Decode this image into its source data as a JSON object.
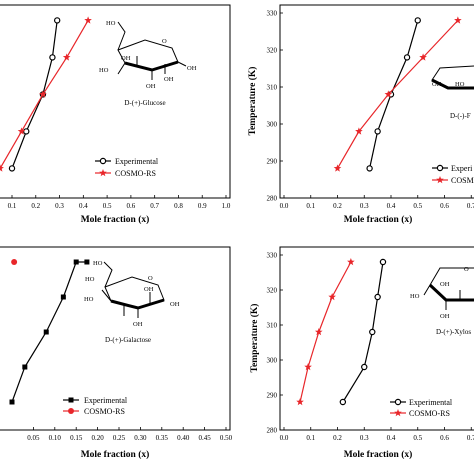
{
  "chart_data": [
    {
      "panel": "top-left",
      "type": "line",
      "xlabel": "Mole fraction (x)",
      "ylabel": "",
      "xlim": [
        0.1,
        1.0
      ],
      "ylim": [
        280,
        330
      ],
      "xticks": [
        "0.1",
        "0.2",
        "0.3",
        "0.4",
        "0.5",
        "0.6",
        "0.7",
        "0.8",
        "0.9",
        "1.0"
      ],
      "yticks": [],
      "legend": "bottom-center",
      "grid": false,
      "molecule_label": "D-(+)-Glucose",
      "series": [
        {
          "name": "Experimental",
          "marker": "circle",
          "color": "#000000",
          "x": [
            0.1,
            0.16,
            0.23,
            0.27,
            0.29
          ],
          "y": [
            288,
            298,
            308,
            318,
            328
          ]
        },
        {
          "name": "COSMO-RS",
          "marker": "star",
          "color": "#e8262a",
          "x": [
            0.05,
            0.14,
            0.23,
            0.33,
            0.42
          ],
          "y": [
            288,
            298,
            308,
            318,
            328
          ]
        }
      ]
    },
    {
      "panel": "top-right",
      "type": "line",
      "xlabel": "Mole fraction (x)",
      "ylabel": "Temperature (K)",
      "xlim": [
        0.0,
        0.8
      ],
      "ylim": [
        280,
        330
      ],
      "xticks": [
        "0.0",
        "0.1",
        "0.2",
        "0.3",
        "0.4",
        "0.5",
        "0.6",
        "0.7"
      ],
      "yticks": [
        "280",
        "290",
        "300",
        "310",
        "320",
        "330"
      ],
      "legend": "bottom-right",
      "grid": false,
      "molecule_label": "D-(-)-F",
      "series": [
        {
          "name": "Experimental",
          "marker": "circle",
          "color": "#000000",
          "x": [
            0.32,
            0.35,
            0.4,
            0.46,
            0.5
          ],
          "y": [
            288,
            298,
            308,
            318,
            328
          ]
        },
        {
          "name": "COSMO-RS",
          "marker": "star",
          "color": "#e8262a",
          "x": [
            0.2,
            0.28,
            0.39,
            0.52,
            0.65
          ],
          "y": [
            288,
            298,
            308,
            318,
            328
          ]
        }
      ],
      "legend_labels": [
        "Experi",
        "COSM"
      ]
    },
    {
      "panel": "bottom-left",
      "type": "line",
      "xlabel": "Mole fraction (x)",
      "ylabel": "",
      "xlim": [
        0.0,
        0.5
      ],
      "ylim": [
        280,
        330
      ],
      "xticks": [
        "0.05",
        "0.10",
        "0.15",
        "0.20",
        "0.25",
        "0.30",
        "0.35",
        "0.40",
        "0.45",
        "0.50"
      ],
      "yticks": [],
      "legend": "bottom-left",
      "grid": false,
      "molecule_label": "D-(+)-Galactose",
      "series": [
        {
          "name": "Experimental",
          "marker": "square",
          "color": "#000000",
          "x": [
            0.0,
            0.03,
            0.08,
            0.12,
            0.15,
            0.175
          ],
          "y": [
            288,
            298,
            308,
            318,
            328,
            328
          ]
        },
        {
          "name": "COSMO-RS",
          "marker": "circle",
          "color": "#e8262a",
          "x": [
            0.005
          ],
          "y": [
            328
          ]
        }
      ]
    },
    {
      "panel": "bottom-right",
      "type": "line",
      "xlabel": "Mole fraction (x)",
      "ylabel": "Temperature (K)",
      "xlim": [
        0.0,
        0.8
      ],
      "ylim": [
        280,
        330
      ],
      "xticks": [
        "0.0",
        "0.1",
        "0.2",
        "0.3",
        "0.4",
        "0.5",
        "0.6",
        "0.7"
      ],
      "yticks": [
        "280",
        "290",
        "300",
        "310",
        "320",
        "330"
      ],
      "legend": "bottom-center",
      "grid": false,
      "molecule_label": "D-(+)-Xylos",
      "series": [
        {
          "name": "Experimental",
          "marker": "circle",
          "color": "#000000",
          "x": [
            0.22,
            0.3,
            0.33,
            0.35,
            0.37
          ],
          "y": [
            288,
            298,
            308,
            318,
            328
          ]
        },
        {
          "name": "COSMO-RS",
          "marker": "star",
          "color": "#e8262a",
          "x": [
            0.06,
            0.09,
            0.13,
            0.18,
            0.25
          ],
          "y": [
            288,
            298,
            308,
            318,
            328
          ]
        }
      ]
    }
  ]
}
